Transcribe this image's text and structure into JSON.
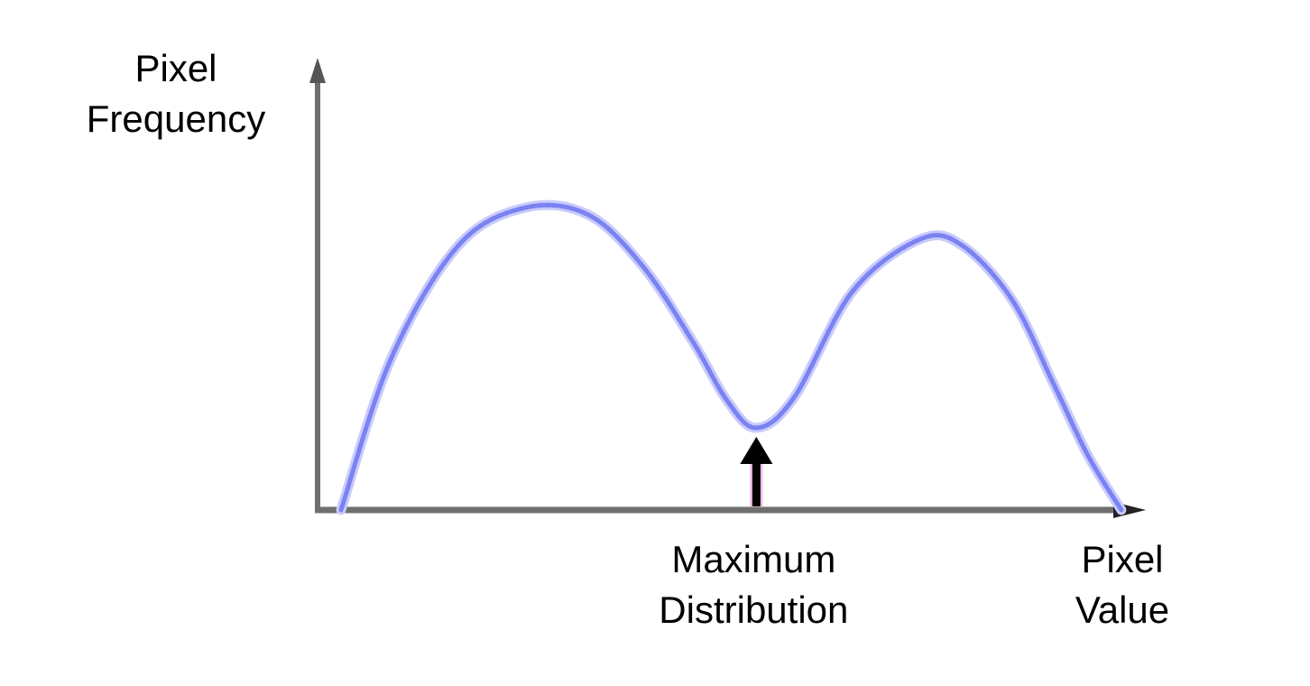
{
  "chart_data": {
    "type": "line",
    "title": "",
    "ylabel": [
      "Pixel",
      "Frequency"
    ],
    "xlabel": [
      "Pixel",
      "Value"
    ],
    "annotation": {
      "text": [
        "Maximum",
        "Distribution"
      ],
      "x": 0.495,
      "points_to": "local-minimum"
    },
    "xlim": [
      0,
      1
    ],
    "ylim": [
      0,
      1
    ],
    "grid": false,
    "legend": "none",
    "colors": {
      "curve": "#7b82f2",
      "axes": "#6f6f6f",
      "arrow": "#000000"
    },
    "series": [
      {
        "x": [
          0.0,
          0.06,
          0.14,
          0.22,
          0.295,
          0.36,
          0.42,
          0.46,
          0.495,
          0.54,
          0.61,
          0.69,
          0.74,
          0.8,
          0.85,
          0.89,
          0.93
        ],
        "y": [
          0.0,
          0.5,
          0.87,
          0.994,
          0.97,
          0.8,
          0.55,
          0.36,
          0.27,
          0.37,
          0.72,
          0.89,
          0.87,
          0.69,
          0.41,
          0.18,
          0.0
        ]
      }
    ]
  }
}
